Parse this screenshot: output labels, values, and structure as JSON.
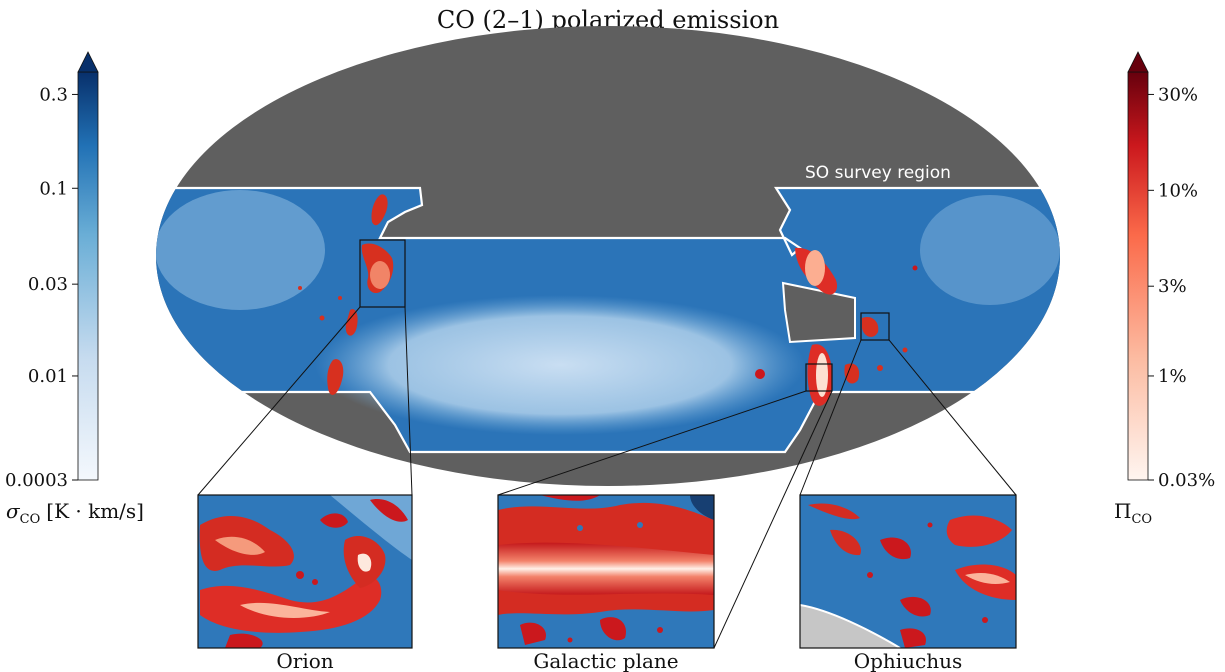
{
  "chart_data": {
    "type": "heatmap",
    "title": "CO (2–1) polarized emission",
    "projection": "mollweide",
    "region_label": "SO survey region",
    "colors": {
      "masked": "#5f5f5f",
      "blue_scale": [
        "#f4f8fd",
        "#c6dbef",
        "#6aaed6",
        "#2171b5",
        "#08306b"
      ],
      "red_scale": [
        "#fff5f0",
        "#fcbba1",
        "#fb6a4a",
        "#cb181d",
        "#67000d"
      ],
      "contour": "#ffffff"
    },
    "left_colorbar": {
      "label": "σ",
      "label_sub": "CO",
      "label_units": "[K · km/s]",
      "scale": "log",
      "ticks": [
        0.0003,
        0.01,
        0.03,
        0.1,
        0.3
      ],
      "tick_labels": [
        "0.0003",
        "0.01",
        "0.03",
        "0.1",
        "0.3"
      ],
      "extend": "max"
    },
    "right_colorbar": {
      "label": "Π",
      "label_sub": "CO",
      "scale": "log",
      "ticks": [
        0.03,
        1,
        3,
        10,
        30
      ],
      "tick_labels": [
        "0.03%",
        "1%",
        "3%",
        "10%",
        "30%"
      ],
      "extend": "max"
    },
    "insets": [
      {
        "label": "Orion"
      },
      {
        "label": "Galactic plane"
      },
      {
        "label": "Ophiuchus"
      }
    ]
  }
}
